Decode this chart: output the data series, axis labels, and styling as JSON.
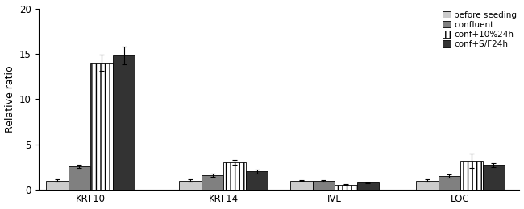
{
  "categories": [
    "KRT10",
    "KRT14",
    "IVL",
    "LOC"
  ],
  "series_labels": [
    "before seeding",
    "confluent",
    "conf+10%24h",
    "conf+S/F24h"
  ],
  "values": [
    [
      1.0,
      1.0,
      1.0,
      1.0
    ],
    [
      2.6,
      1.6,
      1.0,
      1.5
    ],
    [
      14.0,
      3.0,
      0.55,
      3.2
    ],
    [
      14.8,
      2.0,
      0.75,
      2.7
    ]
  ],
  "errors": [
    [
      0.1,
      0.1,
      0.05,
      0.1
    ],
    [
      0.18,
      0.15,
      0.08,
      0.2
    ],
    [
      0.9,
      0.25,
      0.05,
      0.8
    ],
    [
      1.0,
      0.2,
      0.08,
      0.2
    ]
  ],
  "bar_colors": [
    "#cccccc",
    "#808080",
    "#ffffff",
    "#333333"
  ],
  "bar_hatches": [
    "",
    "",
    "|||",
    ""
  ],
  "ylabel": "Relative ratio",
  "ylim": [
    0,
    20
  ],
  "yticks": [
    0,
    5,
    10,
    15,
    20
  ],
  "bar_width": 0.15,
  "group_positions": [
    0.45,
    1.35,
    2.1,
    2.95
  ],
  "legend_fontsize": 7.5,
  "tick_fontsize": 8.5,
  "label_fontsize": 9
}
